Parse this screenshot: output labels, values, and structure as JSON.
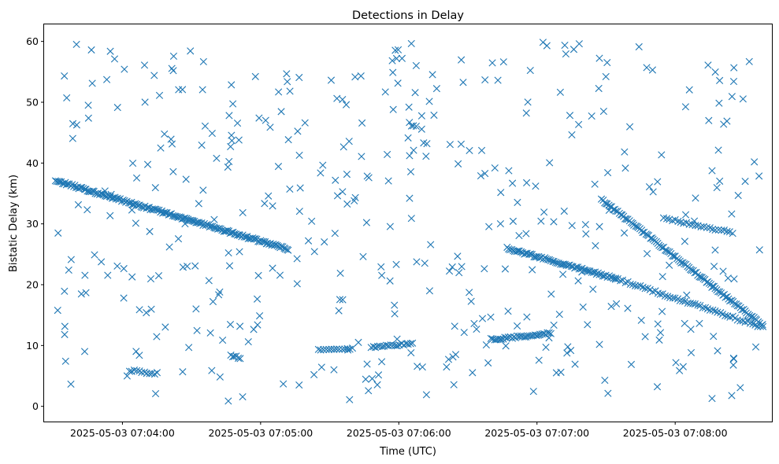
{
  "chart_data": {
    "type": "scatter",
    "title": "Detections in Delay",
    "xlabel": "Time (UTC)",
    "ylabel": "Bistatic Delay (km)",
    "marker": "x",
    "color": "#1f77b4",
    "grid": false,
    "x_start": "2025-05-03 07:03:31",
    "x_end": "2025-05-03 07:08:38",
    "xlim": [
      "2025-05-03 07:03:26",
      "2025-05-03 07:08:42"
    ],
    "ylim": [
      -2.5,
      62.8
    ],
    "x_ticks": [
      {
        "label": "2025-05-03 07:04:00"
      },
      {
        "label": "2025-05-03 07:05:00"
      },
      {
        "label": "2025-05-03 07:06:00"
      },
      {
        "label": "2025-05-03 07:07:00"
      },
      {
        "label": "2025-05-03 07:08:00"
      }
    ],
    "y_ticks": [
      0,
      10,
      20,
      30,
      40,
      50,
      60
    ],
    "tracks": [
      {
        "x_start": "2025-05-03 07:03:31",
        "x_end": "2025-05-03 07:05:12",
        "y_start": 37.1,
        "y_end": 25.8,
        "points": 170
      },
      {
        "x_start": "2025-05-03 07:07:28",
        "x_end": "2025-05-03 07:08:38",
        "y_start": 34.0,
        "y_end": 13.3,
        "points": 110
      },
      {
        "x_start": "2025-05-03 07:06:47",
        "x_end": "2025-05-03 07:07:34",
        "y_start": 26.0,
        "y_end": 21.0,
        "points": 70
      },
      {
        "x_start": "2025-05-03 07:07:34",
        "x_end": "2025-05-03 07:08:38",
        "y_start": 21.0,
        "y_end": 13.0,
        "points": 60
      },
      {
        "x_start": "2025-05-03 07:07:55",
        "x_end": "2025-05-03 07:08:25",
        "y_start": 31.0,
        "y_end": 28.5,
        "points": 25
      },
      {
        "x_start": "2025-05-03 07:05:25",
        "x_end": "2025-05-03 07:05:40",
        "y_start": 9.2,
        "y_end": 9.5,
        "points": 14
      },
      {
        "x_start": "2025-05-03 07:05:48",
        "x_end": "2025-05-03 07:06:06",
        "y_start": 9.8,
        "y_end": 10.3,
        "points": 20
      },
      {
        "x_start": "2025-05-03 07:06:40",
        "x_end": "2025-05-03 07:07:06",
        "y_start": 11.0,
        "y_end": 12.0,
        "points": 35
      },
      {
        "x_start": "2025-05-03 07:04:03",
        "x_end": "2025-05-03 07:04:15",
        "y_start": 5.9,
        "y_end": 5.4,
        "points": 12
      },
      {
        "x_start": "2025-05-03 07:04:47",
        "x_end": "2025-05-03 07:04:51",
        "y_start": 8.3,
        "y_end": 8.0,
        "points": 6
      }
    ],
    "scatter_points": {
      "count": 430,
      "y_range": [
        0.8,
        59.9
      ]
    }
  }
}
